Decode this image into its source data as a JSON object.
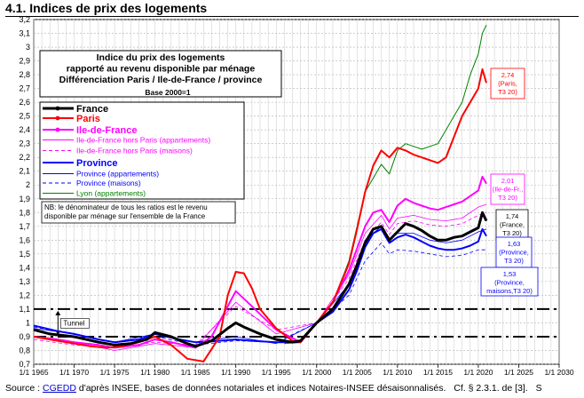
{
  "page": {
    "title": "4.1. Indices de prix des logements",
    "source_label": "Source :",
    "source_link": "CGEDD",
    "source_rest": "d'après INSEE, bases de données notariales et indices Notaires-INSEE désaisonnalisés.",
    "source_ref": "Cf. § 2.3.1. de [3].",
    "source_cut": "S"
  },
  "chart_data": {
    "type": "line",
    "title_lines": [
      "Indice du prix des logements",
      "rapporté au revenu disponible par ménage",
      "Différenciation Paris / Ile-de-France / province"
    ],
    "subtitle": "Base 2000=1",
    "note_lines": [
      "NB: le dénominateur de tous les ratios est le revenu",
      "disponible par ménage sur l'ensemble de la France"
    ],
    "xlim": [
      1965,
      2030
    ],
    "ylim": [
      0.7,
      3.2
    ],
    "x_ticks": [
      1965,
      1970,
      1975,
      1980,
      1985,
      1990,
      1995,
      2000,
      2005,
      2010,
      2015,
      2020,
      2025,
      2030
    ],
    "x_tick_labels": [
      "1/1 1965",
      "1/1 1970",
      "1/1 1975",
      "1/1 1980",
      "1/1 1985",
      "1/1 1990",
      "1/1 1995",
      "1/1 2000",
      "1/1 2005",
      "1/1 2010",
      "1/1 2015",
      "1/1 2020",
      "1/1 2025",
      "1/1 2030"
    ],
    "y_ticks": [
      0.7,
      0.8,
      0.9,
      1.0,
      1.1,
      1.2,
      1.3,
      1.4,
      1.5,
      1.6,
      1.7,
      1.8,
      1.9,
      2.0,
      2.1,
      2.2,
      2.3,
      2.4,
      2.5,
      2.6,
      2.7,
      2.8,
      2.9,
      3.0,
      3.1,
      3.2
    ],
    "y_tick_labels": [
      "0,7",
      "0,8",
      "0,9",
      "1",
      "1,1",
      "1,2",
      "1,3",
      "1,4",
      "1,5",
      "1,6",
      "1,7",
      "1,8",
      "1,9",
      "2",
      "2,1",
      "2,2",
      "2,3",
      "2,4",
      "2,5",
      "2,6",
      "2,7",
      "2,8",
      "2,9",
      "3",
      "3,1",
      "3,2"
    ],
    "grid": true,
    "legend_position": "left",
    "tunnel": {
      "label": "Tunnel",
      "upper": 1.1,
      "lower": 0.9
    },
    "series": [
      {
        "name": "France",
        "color": "#000000",
        "width": 3,
        "dash": "",
        "marker": true,
        "x": [
          1965,
          1967,
          1970,
          1973,
          1975,
          1977,
          1979,
          1980,
          1982,
          1984,
          1985,
          1987,
          1989,
          1990,
          1991,
          1993,
          1995,
          1997,
          1998,
          2000,
          2002,
          2004,
          2005,
          2006,
          2007,
          2008,
          2009,
          2010,
          2011,
          2012,
          2013,
          2014,
          2015,
          2016,
          2017,
          2018,
          2019,
          2020,
          2020.5,
          2021
        ],
        "y": [
          0.95,
          0.92,
          0.9,
          0.86,
          0.84,
          0.85,
          0.88,
          0.93,
          0.9,
          0.85,
          0.83,
          0.87,
          0.96,
          1.0,
          0.97,
          0.92,
          0.88,
          0.86,
          0.87,
          1.0,
          1.1,
          1.28,
          1.42,
          1.58,
          1.68,
          1.7,
          1.6,
          1.66,
          1.72,
          1.7,
          1.67,
          1.63,
          1.6,
          1.6,
          1.62,
          1.63,
          1.66,
          1.69,
          1.8,
          1.74
        ]
      },
      {
        "name": "Paris",
        "color": "#ff0000",
        "width": 2,
        "dash": "",
        "marker": true,
        "x": [
          1965,
          1967,
          1970,
          1972,
          1974,
          1976,
          1978,
          1980,
          1982,
          1984,
          1986,
          1988,
          1989,
          1990,
          1991,
          1992,
          1993,
          1995,
          1997,
          1998,
          2000,
          2002,
          2004,
          2005,
          2006,
          2007,
          2008,
          2009,
          2010,
          2011,
          2012,
          2013,
          2014,
          2015,
          2016,
          2017,
          2018,
          2019,
          2020,
          2020.5,
          2021
        ],
        "y": [
          0.9,
          0.88,
          0.85,
          0.83,
          0.82,
          0.83,
          0.86,
          0.9,
          0.84,
          0.74,
          0.72,
          0.9,
          1.2,
          1.37,
          1.36,
          1.25,
          1.1,
          0.96,
          0.87,
          0.86,
          1.0,
          1.15,
          1.43,
          1.68,
          1.95,
          2.14,
          2.25,
          2.2,
          2.27,
          2.25,
          2.22,
          2.2,
          2.18,
          2.16,
          2.2,
          2.35,
          2.5,
          2.6,
          2.7,
          2.84,
          2.74
        ]
      },
      {
        "name": "Ile-de-France",
        "color": "#ff00ff",
        "width": 2,
        "dash": "",
        "marker": true,
        "x": [
          1965,
          1968,
          1970,
          1973,
          1975,
          1978,
          1980,
          1982,
          1985,
          1987,
          1990,
          1992,
          1995,
          1998,
          2000,
          2002,
          2004,
          2005,
          2006,
          2007,
          2008,
          2009,
          2010,
          2011,
          2012,
          2013,
          2014,
          2015,
          2016,
          2017,
          2018,
          2019,
          2020,
          2020.5,
          2021
        ],
        "y": [
          0.9,
          0.88,
          0.86,
          0.84,
          0.82,
          0.84,
          0.88,
          0.86,
          0.82,
          0.9,
          1.23,
          1.12,
          0.95,
          0.86,
          1.0,
          1.15,
          1.38,
          1.54,
          1.7,
          1.8,
          1.82,
          1.73,
          1.85,
          1.9,
          1.87,
          1.85,
          1.83,
          1.82,
          1.84,
          1.86,
          1.88,
          1.92,
          1.96,
          2.06,
          2.01
        ]
      },
      {
        "name": "Ile-de-France hors Paris (appartements)",
        "color": "#ff00ff",
        "width": 0.8,
        "dash": "",
        "marker": false,
        "x": [
          1965,
          1970,
          1975,
          1980,
          1985,
          1990,
          1995,
          2000,
          2004,
          2006,
          2008,
          2009,
          2010,
          2012,
          2014,
          2016,
          2018,
          2020,
          2021
        ],
        "y": [
          0.9,
          0.86,
          0.8,
          0.85,
          0.82,
          1.15,
          0.92,
          1.0,
          1.35,
          1.65,
          1.78,
          1.68,
          1.76,
          1.78,
          1.75,
          1.74,
          1.76,
          1.84,
          1.86
        ]
      },
      {
        "name": "Ile-de-France hors Paris (maisons)",
        "color": "#ff00ff",
        "width": 0.8,
        "dash": "4,3",
        "marker": false,
        "x": [
          1965,
          1970,
          1975,
          1980,
          1985,
          1990,
          1995,
          2000,
          2004,
          2006,
          2008,
          2009,
          2010,
          2012,
          2014,
          2016,
          2018,
          2020,
          2021
        ],
        "y": [
          0.88,
          0.84,
          0.82,
          0.86,
          0.84,
          1.12,
          0.95,
          1.0,
          1.32,
          1.6,
          1.73,
          1.64,
          1.72,
          1.74,
          1.71,
          1.7,
          1.72,
          1.78,
          1.8
        ]
      },
      {
        "name": "Province",
        "color": "#0000ff",
        "width": 2,
        "dash": "",
        "marker": false,
        "x": [
          1965,
          1968,
          1970,
          1973,
          1975,
          1978,
          1980,
          1983,
          1985,
          1988,
          1990,
          1992,
          1995,
          1998,
          2000,
          2002,
          2004,
          2005,
          2006,
          2007,
          2008,
          2009,
          2010,
          2011,
          2012,
          2013,
          2014,
          2015,
          2016,
          2017,
          2018,
          2019,
          2020,
          2020.5,
          2021
        ],
        "y": [
          0.98,
          0.94,
          0.92,
          0.88,
          0.86,
          0.88,
          0.92,
          0.88,
          0.86,
          0.87,
          0.88,
          0.87,
          0.86,
          0.86,
          1.0,
          1.08,
          1.24,
          1.38,
          1.55,
          1.65,
          1.68,
          1.58,
          1.62,
          1.64,
          1.62,
          1.59,
          1.56,
          1.54,
          1.53,
          1.53,
          1.54,
          1.56,
          1.59,
          1.68,
          1.63
        ]
      },
      {
        "name": "Province (appartements)",
        "color": "#0000ff",
        "width": 0.8,
        "dash": "",
        "marker": false,
        "x": [
          1965,
          1970,
          1975,
          1980,
          1985,
          1990,
          1995,
          2000,
          2004,
          2006,
          2008,
          2009,
          2010,
          2012,
          2014,
          2016,
          2018,
          2020,
          2021
        ],
        "y": [
          0.96,
          0.92,
          0.86,
          0.92,
          0.86,
          0.9,
          0.85,
          1.0,
          1.28,
          1.6,
          1.7,
          1.6,
          1.65,
          1.65,
          1.6,
          1.58,
          1.6,
          1.66,
          1.68
        ]
      },
      {
        "name": "Province (maisons)",
        "color": "#0000ff",
        "width": 0.8,
        "dash": "4,3",
        "marker": false,
        "x": [
          1965,
          1970,
          1975,
          1980,
          1985,
          1990,
          1995,
          2000,
          2004,
          2006,
          2008,
          2009,
          2010,
          2012,
          2014,
          2016,
          2018,
          2020,
          2021
        ],
        "y": [
          0.97,
          0.92,
          0.86,
          0.9,
          0.84,
          0.87,
          0.86,
          1.0,
          1.2,
          1.45,
          1.58,
          1.5,
          1.53,
          1.52,
          1.5,
          1.48,
          1.49,
          1.53,
          1.53
        ]
      },
      {
        "name": "Lyon (appartements)",
        "color": "#008000",
        "width": 1,
        "dash": "",
        "marker": false,
        "x": [
          1996,
          1998,
          2000,
          2002,
          2004,
          2005,
          2006,
          2007,
          2008,
          2009,
          2010,
          2011,
          2012,
          2013,
          2014,
          2015,
          2016,
          2017,
          2018,
          2019,
          2020,
          2020.5,
          2021
        ],
        "y": [
          0.85,
          0.86,
          1.0,
          1.15,
          1.45,
          1.7,
          1.95,
          2.05,
          2.15,
          2.08,
          2.25,
          2.3,
          2.28,
          2.26,
          2.28,
          2.3,
          2.4,
          2.5,
          2.6,
          2.8,
          2.95,
          3.1,
          3.16
        ]
      }
    ],
    "end_labels": [
      {
        "lines": [
          "2,74",
          "(Paris,",
          "T3 20)"
        ],
        "color": "#ff0000",
        "border": "#ff0000"
      },
      {
        "lines": [
          "2,01",
          "(Ile-de-Fr.,",
          "T3 20)"
        ],
        "color": "#ff00ff",
        "border": "#ff00ff"
      },
      {
        "lines": [
          "1,74",
          "(France,",
          "T3 20)"
        ],
        "color": "#000000",
        "border": "#000000"
      },
      {
        "lines": [
          "1,63",
          "(Province,",
          "T3 20)"
        ],
        "color": "#0000ff",
        "border": "#0000ff"
      },
      {
        "lines": [
          "1,53",
          "(Province,",
          "maisons,T3 20)"
        ],
        "color": "#0000ff",
        "border": "#0000ff"
      }
    ]
  }
}
